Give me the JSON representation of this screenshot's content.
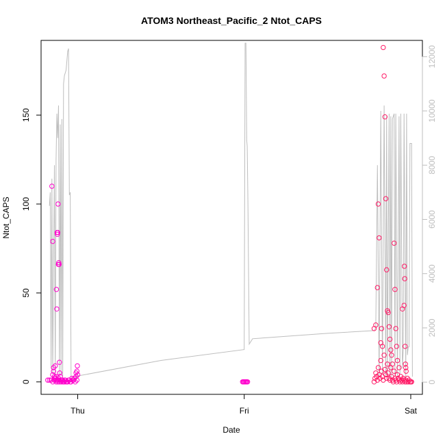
{
  "chart_data": {
    "type": "scatter",
    "title": "ATOM3 Northeast_Pacific_2 Ntot_CAPS",
    "xlabel": "Date",
    "ylabel": "Ntot_CAPS",
    "x_ticks": [
      "Thu",
      "Fri",
      "Sat"
    ],
    "x_tick_values": [
      1.0,
      2.0,
      3.0
    ],
    "xlim": [
      0.78,
      3.07
    ],
    "ylim": [
      -7,
      192
    ],
    "y_ticks": [
      0,
      50,
      100,
      150
    ],
    "y2lim": [
      -450,
      12600
    ],
    "y2_ticks": [
      0,
      2000,
      4000,
      6000,
      8000,
      10000,
      12000
    ],
    "grid": false,
    "point_color_primary": "#ff00cc",
    "point_color_secondary": "#ff1a66",
    "line_color": "#bdbdbd",
    "secondary_series": {
      "axis": "right",
      "x": [
        0.83,
        0.835,
        0.84,
        0.845,
        0.85,
        0.86,
        0.865,
        0.87,
        0.875,
        0.88,
        0.885,
        0.89,
        0.895,
        0.9,
        0.905,
        0.91,
        0.915,
        0.92,
        0.925,
        0.93,
        0.94,
        0.945,
        0.95,
        0.955,
        0.96,
        0.965,
        0.97,
        0.975,
        0.98,
        0.985,
        0.99,
        0.993,
        0.995,
        1.0,
        1.02,
        1.5,
        2.0,
        2.005,
        2.01,
        2.015,
        2.018,
        2.022,
        2.03,
        2.05,
        2.5,
        2.78,
        2.79,
        2.8,
        2.81,
        2.82,
        2.83,
        2.84,
        2.85,
        2.855,
        2.86,
        2.87,
        2.875,
        2.88,
        2.885,
        2.89,
        2.9,
        2.905,
        2.91,
        2.92,
        2.93,
        2.935,
        2.94,
        2.95,
        2.955,
        2.96,
        2.97,
        2.975,
        2.98,
        2.985,
        2.99,
        2.995,
        3.0,
        3.005,
        3.01
      ],
      "values": [
        6500,
        7000,
        500,
        7500,
        300,
        8000,
        200,
        8200,
        9900,
        9000,
        10200,
        200,
        9500,
        300,
        9700,
        200,
        11000,
        11300,
        11400,
        11500,
        12200,
        12300,
        6900,
        7000,
        200,
        150,
        100,
        120,
        140,
        160,
        180,
        200,
        210,
        230,
        250,
        800,
        1200,
        12500,
        12500,
        8900,
        8700,
        6700,
        1400,
        1600,
        1800,
        1900,
        2000,
        8000,
        200,
        10000,
        300,
        10200,
        200,
        9800,
        200,
        9900,
        200,
        9800,
        200,
        9700,
        9900,
        200,
        9900,
        200,
        9800,
        300,
        9900,
        500,
        1200,
        9900,
        200,
        9900,
        1000,
        1300,
        1300,
        8800,
        8800,
        8800,
        200
      ]
    },
    "series": [
      {
        "x": [
          0.82,
          0.83,
          0.84,
          0.85,
          0.86,
          0.87,
          0.88,
          0.89,
          0.9,
          0.91,
          0.92,
          0.93,
          0.94,
          0.95,
          0.96,
          0.97,
          0.98,
          0.99,
          1.0,
          0.855,
          0.865,
          0.875,
          0.885,
          0.895,
          0.905,
          0.915,
          0.925,
          0.935,
          0.945,
          0.955,
          0.965,
          0.975,
          0.985,
          0.995,
          0.99,
          0.995,
          0.998,
          0.85,
          0.86,
          0.87,
          0.88,
          0.89,
          0.9,
          0.91,
          0.92
        ],
        "values": [
          1,
          1,
          1,
          0,
          1,
          0,
          0,
          1,
          0,
          1,
          0,
          0,
          0,
          1,
          0,
          1,
          2,
          3,
          4,
          6,
          9,
          1,
          2,
          3,
          1,
          0,
          1,
          0,
          1,
          0,
          2,
          1,
          0,
          1,
          5,
          6,
          9,
          4,
          2,
          3,
          1,
          0,
          1,
          0,
          1
        ]
      },
      {
        "x": [
          0.845,
          0.85,
          0.855,
          0.86,
          0.865,
          0.87,
          0.872,
          0.874,
          0.876,
          0.878,
          0.88,
          0.882,
          0.884,
          0.886,
          0.888,
          0.89,
          0.892
        ],
        "values": [
          110,
          79,
          8,
          3,
          2,
          1,
          52,
          41,
          84,
          83,
          84,
          100,
          66,
          67,
          66,
          11,
          5
        ]
      },
      {
        "x": [
          1.99,
          1.995,
          2.0,
          2.005,
          2.01,
          2.015,
          2.02
        ],
        "values": [
          0,
          0,
          0,
          0,
          0,
          0,
          0
        ]
      },
      {
        "x": [
          2.78,
          2.785,
          2.79,
          2.795,
          2.8,
          2.805,
          2.81,
          2.815,
          2.82,
          2.825,
          2.83,
          2.835,
          2.84,
          2.845,
          2.85,
          2.855,
          2.86,
          2.865,
          2.87,
          2.875,
          2.88,
          2.885,
          2.89,
          2.895,
          2.9,
          2.905,
          2.91,
          2.915,
          2.92,
          2.925,
          2.93,
          2.935,
          2.94,
          2.945,
          2.95,
          2.955,
          2.96,
          2.965,
          2.97,
          2.975,
          2.98,
          2.985,
          2.99,
          2.995,
          3.0,
          3.005
        ],
        "values": [
          0,
          2,
          5,
          3,
          1,
          8,
          4,
          2,
          12,
          6,
          3,
          1,
          15,
          7,
          4,
          2,
          10,
          5,
          2,
          1,
          8,
          3,
          1,
          0,
          6,
          2,
          1,
          0,
          4,
          2,
          1,
          0,
          3,
          1,
          0,
          2,
          1,
          0,
          1,
          0,
          2,
          0,
          1,
          0,
          0,
          0
        ]
      },
      {
        "x": [
          2.78,
          2.79,
          2.8,
          2.805,
          2.81,
          2.82,
          2.825,
          2.83,
          2.835,
          2.84,
          2.845,
          2.85,
          2.855,
          2.86,
          2.865,
          2.87,
          2.875,
          2.88,
          2.885,
          2.89,
          2.9,
          2.905,
          2.91,
          2.915,
          2.92,
          2.93,
          2.95,
          2.96,
          2.962,
          2.964,
          2.966,
          2.968,
          2.97,
          2.972
        ],
        "values": [
          30,
          32,
          53,
          100,
          81,
          22,
          30,
          20,
          188,
          172,
          149,
          103,
          63,
          40,
          39,
          31,
          24,
          18,
          15,
          10,
          78,
          52,
          30,
          20,
          12,
          8,
          41,
          43,
          65,
          58,
          20,
          10,
          8,
          6
        ]
      }
    ]
  }
}
